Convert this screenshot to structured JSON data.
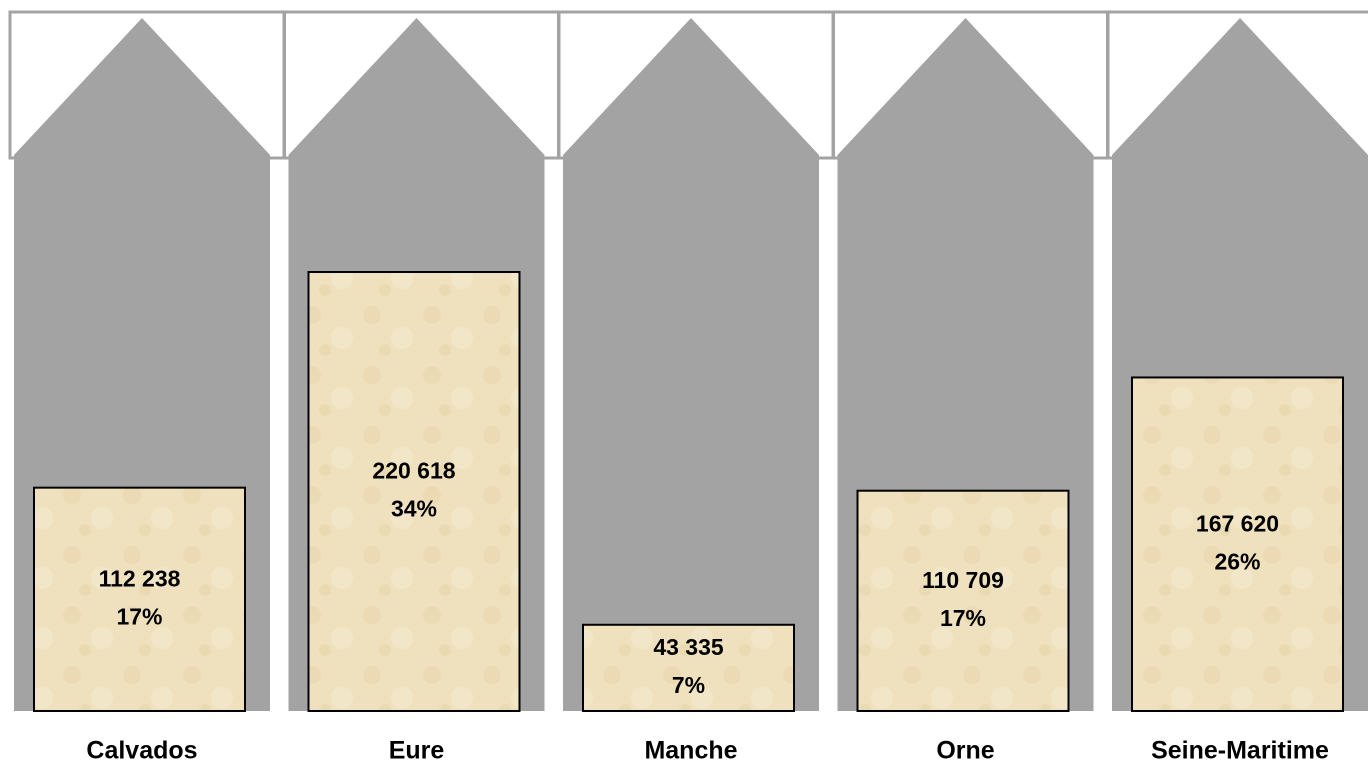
{
  "chart_data": {
    "type": "bar",
    "categories": [
      "Calvados",
      "Eure",
      "Manche",
      "Orne",
      "Seine-Maritime"
    ],
    "values": [
      112238,
      220618,
      43335,
      110709,
      167620
    ],
    "value_labels": [
      "112 238",
      "220 618",
      "43 335",
      "110 709",
      "167 620"
    ],
    "shares": [
      17,
      34,
      7,
      17,
      26
    ],
    "share_labels": [
      "17%",
      "34%",
      "7%",
      "17%",
      "26%"
    ],
    "color": "#efe1bd"
  }
}
